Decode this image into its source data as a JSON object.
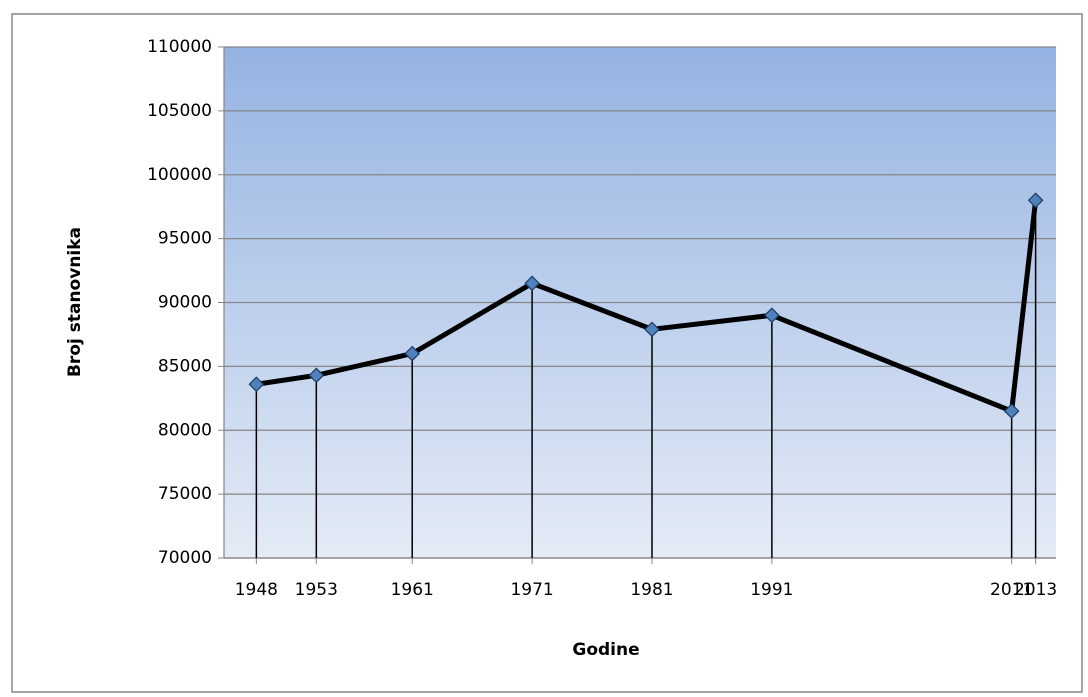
{
  "chart_data": {
    "type": "line",
    "x_label": "Godine",
    "y_label": "Broj stanovnika",
    "x": [
      1948,
      1953,
      1961,
      1971,
      1981,
      1991,
      2011,
      2013
    ],
    "series": [
      {
        "name": "Broj stanovnika",
        "color": "#000000",
        "marker_color": "#4f81bd",
        "values": [
          83600,
          84300,
          86000,
          91500,
          87900,
          89000,
          81500,
          98000
        ]
      }
    ],
    "xlim": [
      1945.3,
      2014.7
    ],
    "xticks": [
      1948,
      1953,
      1961,
      1971,
      1981,
      1991,
      2011,
      2013
    ],
    "ylim": [
      70000,
      110000
    ],
    "yticks": [
      70000,
      75000,
      80000,
      85000,
      90000,
      95000,
      100000,
      105000,
      110000
    ],
    "grid": true,
    "drop_lines": true
  }
}
